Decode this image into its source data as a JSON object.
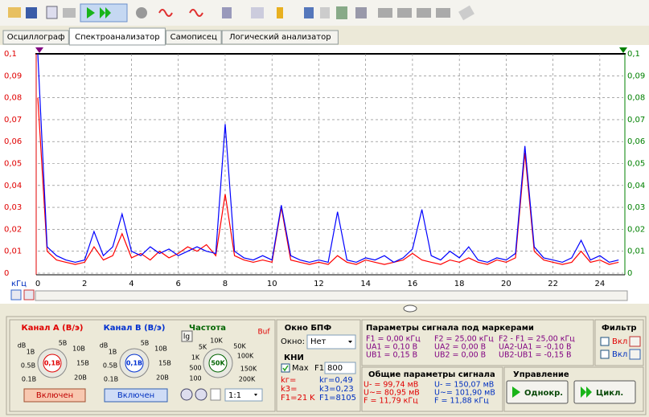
{
  "tabs": [
    "Осциллограф",
    "Спектроанализатор",
    "Самописец",
    "Логический анализатор"
  ],
  "chart_data": {
    "type": "line",
    "xlabel": "кГц",
    "x": [
      0,
      0.4,
      0.8,
      1.2,
      1.6,
      2.0,
      2.4,
      2.8,
      3.2,
      3.6,
      4.0,
      4.4,
      4.8,
      5.2,
      5.6,
      6.0,
      6.4,
      6.8,
      7.2,
      7.6,
      8.0,
      8.4,
      8.8,
      9.2,
      9.6,
      10.0,
      10.4,
      10.8,
      11.2,
      11.6,
      12.0,
      12.4,
      12.8,
      13.2,
      13.6,
      14.0,
      14.4,
      14.8,
      15.2,
      15.6,
      16.0,
      16.4,
      16.8,
      17.2,
      17.6,
      18.0,
      18.4,
      18.8,
      19.2,
      19.6,
      20.0,
      20.4,
      20.8,
      21.2,
      21.6,
      22.0,
      22.4,
      22.8,
      23.2,
      23.6,
      24.0,
      24.4,
      24.8
    ],
    "xlim": [
      0,
      25
    ],
    "xticks": [
      0,
      2,
      4,
      6,
      8,
      10,
      12,
      14,
      16,
      18,
      20,
      22,
      24
    ],
    "ylim": [
      0,
      0.1
    ],
    "yticks": [
      0,
      {
        "value": 0.01,
        "label": "0,01"
      },
      {
        "value": 0.02,
        "label": "0,02"
      },
      {
        "value": 0.03,
        "label": "0,03"
      },
      {
        "value": 0.04,
        "label": "0,04"
      },
      {
        "value": 0.05,
        "label": "0,05"
      },
      {
        "value": 0.06,
        "label": "0,06"
      },
      {
        "value": 0.07,
        "label": "0,07"
      },
      {
        "value": 0.08,
        "label": "0,08"
      },
      {
        "value": 0.09,
        "label": "0,09"
      },
      {
        "value": 0.1,
        "label": "0,1"
      }
    ],
    "grid": true,
    "series": [
      {
        "color": "#ff0000",
        "values": [
          0.08,
          0.01,
          0.006,
          0.005,
          0.004,
          0.005,
          0.012,
          0.006,
          0.008,
          0.018,
          0.007,
          0.009,
          0.006,
          0.01,
          0.007,
          0.009,
          0.012,
          0.01,
          0.013,
          0.008,
          0.036,
          0.008,
          0.006,
          0.005,
          0.006,
          0.005,
          0.03,
          0.006,
          0.005,
          0.004,
          0.005,
          0.004,
          0.008,
          0.005,
          0.004,
          0.006,
          0.005,
          0.004,
          0.005,
          0.006,
          0.009,
          0.006,
          0.005,
          0.004,
          0.006,
          0.005,
          0.007,
          0.005,
          0.004,
          0.006,
          0.005,
          0.007,
          0.055,
          0.01,
          0.006,
          0.005,
          0.004,
          0.005,
          0.01,
          0.005,
          0.006,
          0.004,
          0.005
        ]
      },
      {
        "color": "#0000ff",
        "values": [
          0.1,
          0.012,
          0.008,
          0.006,
          0.005,
          0.006,
          0.019,
          0.008,
          0.012,
          0.027,
          0.01,
          0.008,
          0.012,
          0.009,
          0.011,
          0.008,
          0.01,
          0.012,
          0.01,
          0.009,
          0.068,
          0.01,
          0.007,
          0.006,
          0.008,
          0.006,
          0.031,
          0.008,
          0.006,
          0.005,
          0.006,
          0.005,
          0.028,
          0.006,
          0.005,
          0.007,
          0.006,
          0.008,
          0.005,
          0.007,
          0.011,
          0.029,
          0.008,
          0.006,
          0.01,
          0.007,
          0.012,
          0.006,
          0.005,
          0.007,
          0.006,
          0.009,
          0.058,
          0.012,
          0.007,
          0.006,
          0.005,
          0.007,
          0.015,
          0.006,
          0.008,
          0.005,
          0.006
        ]
      }
    ]
  },
  "panel": {
    "channel_a": {
      "title": "Канал A (В/э)",
      "dial": [
        "dB",
        "1В",
        "5В",
        "10В",
        "15В",
        "20В",
        "0.5В",
        "0.1В"
      ],
      "value": "0,1В",
      "button": "Включен"
    },
    "channel_b": {
      "title": "Канал B (В/э)",
      "dial": [
        "dB",
        "1В",
        "5В",
        "10В",
        "15В",
        "20В",
        "0.5В",
        "0.1В"
      ],
      "value": "0,1В",
      "button": "Включен"
    },
    "frequency": {
      "title": "Частота",
      "buf": "Buf",
      "lg": "lg",
      "dial": [
        "5K",
        "10K",
        "50K",
        "100K",
        "150K",
        "200K",
        "1K",
        "500",
        "100"
      ],
      "value": "50K",
      "zoom": "1:1"
    },
    "fft": {
      "title": "Окно БПФ",
      "window_label": "Окно:",
      "window": "Нет",
      "thd_title": "КНИ",
      "max": "Max",
      "f1_label": "F1",
      "f1": "800",
      "left": [
        "kг=",
        "k3=",
        "F1=21"
      ],
      "k": "K",
      "right": [
        "kг=0,49",
        "k3=0,23",
        "F1=8105"
      ]
    },
    "markers": {
      "title": "Параметры сигнала под маркерами",
      "col1": [
        "F1 = 0,00 кГц",
        "UA1 = 0,10 В",
        "UB1 = 0,15 В"
      ],
      "col2": [
        "F2 = 25,00 кГц",
        "UA2 = 0,00 В",
        "UB2 = 0,00 В"
      ],
      "col3": [
        "F2 - F1 = 25,00 кГц",
        "UA2-UA1 = -0,10 В",
        "UB2-UB1 = -0,15 В"
      ]
    },
    "filter": {
      "title": "Фильтр",
      "a": "Вкл",
      "b": "Вкл"
    },
    "general": {
      "title": "Общие параметры сигнала",
      "a": [
        "U- = 99,74 мВ",
        "U~= 80,95 мВ",
        "F = 11,79 кГц"
      ],
      "b": [
        "U- = 150,07 мВ",
        "U~= 101,90 мВ",
        "F = 11,88 кГц"
      ]
    },
    "control": {
      "title": "Управление",
      "once": "Однокр.",
      "cycle": "Цикл."
    }
  }
}
